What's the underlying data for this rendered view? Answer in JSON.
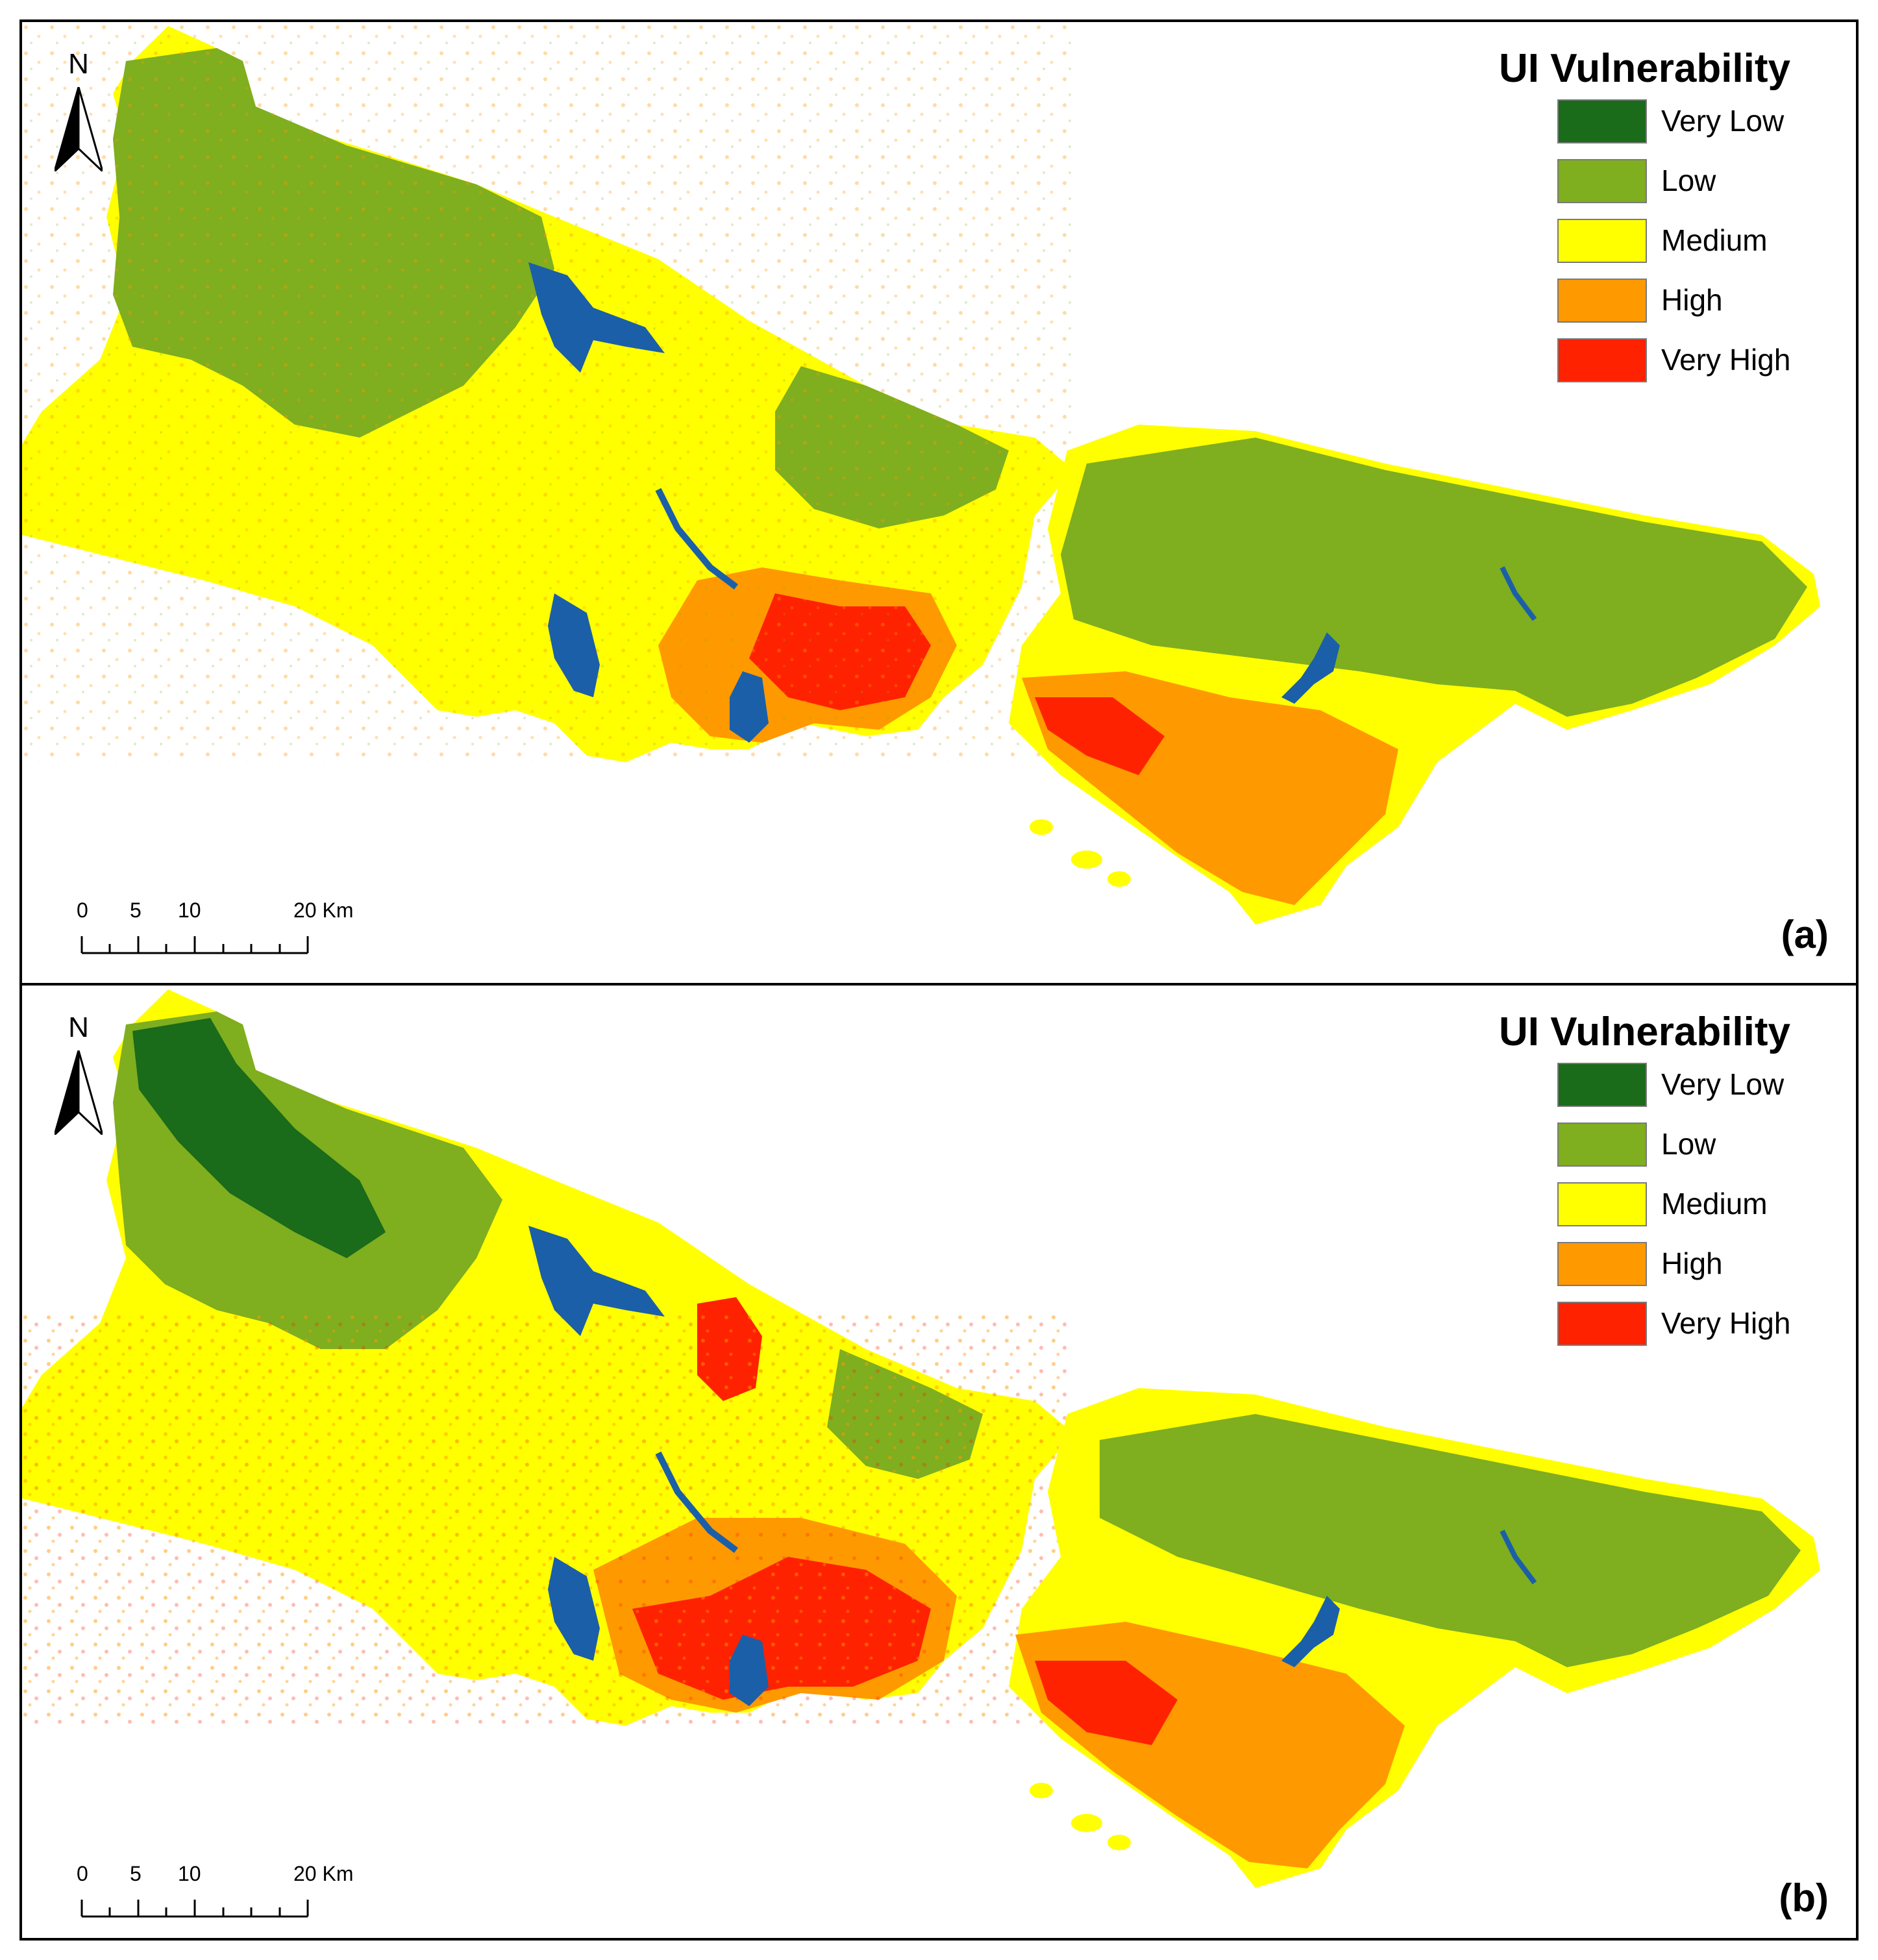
{
  "colors": {
    "very_low": "#1a6b1a",
    "low": "#7fae1f",
    "medium": "#ffff00",
    "high": "#ff9900",
    "very_high": "#ff2200",
    "water": "#1b5fa8"
  },
  "north_arrow": {
    "label": "N",
    "icon": "north-arrow-icon"
  },
  "legend": {
    "title": "UI Vulnerability",
    "items": [
      {
        "label": "Very Low",
        "color": "#1a6b1a"
      },
      {
        "label": "Low",
        "color": "#7fae1f"
      },
      {
        "label": "Medium",
        "color": "#ffff00"
      },
      {
        "label": "High",
        "color": "#ff9900"
      },
      {
        "label": "Very High",
        "color": "#ff2200"
      }
    ]
  },
  "scale": {
    "ticks": [
      "0",
      "5",
      "10",
      "20 Km"
    ]
  },
  "panels": [
    {
      "label": "(a)"
    },
    {
      "label": "(b)"
    }
  ]
}
